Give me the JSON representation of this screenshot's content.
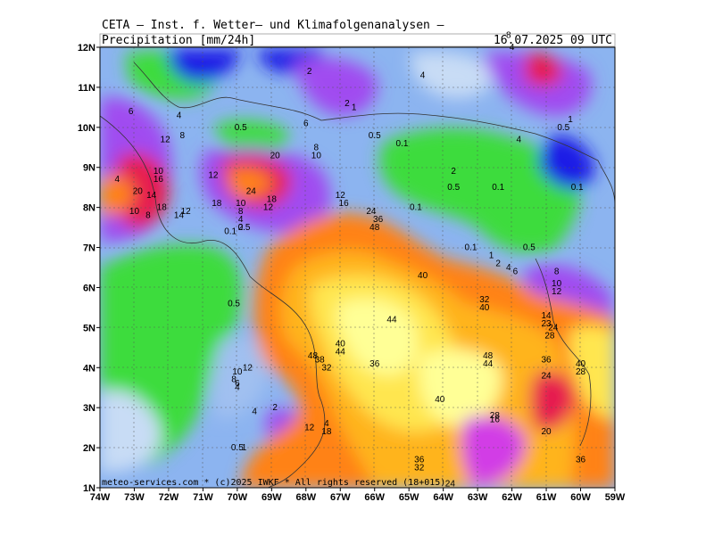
{
  "header": {
    "source": "CETA — Inst. f. Wetter— und Klimafolgenanalysen —",
    "parameter": "Precipitation [mm/24h]",
    "valid_time": "16.07.2025  09 UTC"
  },
  "footer": "meteo-services.com * (c)2025 IWKF * All rights reserved (18+015)",
  "axes": {
    "longitudes": [
      "74W",
      "73W",
      "72W",
      "71W",
      "70W",
      "69W",
      "68W",
      "67W",
      "66W",
      "65W",
      "64W",
      "63W",
      "62W",
      "61W",
      "60W",
      "59W"
    ],
    "latitudes": [
      "1N",
      "2N",
      "3N",
      "4N",
      "5N",
      "6N",
      "7N",
      "8N",
      "9N",
      "10N",
      "11N",
      "12N"
    ]
  },
  "legend_colors": {
    "0.1": "#c8dcf5",
    "0.5": "#a0c0f0",
    "1": "#3cdc3c",
    "2": "#8cb4f0",
    "4": "#6c8cf0",
    "8": "#a04cf0",
    "12": "#d23ce6",
    "16": "#e61e50",
    "20": "#ff5014",
    "24": "#ff8214",
    "32": "#ffb41e",
    "40": "#ffe650",
    "48": "#ffff96",
    "dry": "#1e1ee6"
  },
  "contour_labels": [
    {
      "lon": -73.1,
      "lat": 10.4,
      "text": "6"
    },
    {
      "lon": -71.7,
      "lat": 10.3,
      "text": "4"
    },
    {
      "lon": -72.1,
      "lat": 9.7,
      "text": "12"
    },
    {
      "lon": -71.6,
      "lat": 9.8,
      "text": "8"
    },
    {
      "lon": -72.3,
      "lat": 8.9,
      "text": "10"
    },
    {
      "lon": -72.3,
      "lat": 8.7,
      "text": "16"
    },
    {
      "lon": -73.5,
      "lat": 8.7,
      "text": "4"
    },
    {
      "lon": -72.9,
      "lat": 8.4,
      "text": "20"
    },
    {
      "lon": -72.5,
      "lat": 8.3,
      "text": "14"
    },
    {
      "lon": -72.2,
      "lat": 8.0,
      "text": "18"
    },
    {
      "lon": -73.0,
      "lat": 7.9,
      "text": "10"
    },
    {
      "lon": -72.6,
      "lat": 7.8,
      "text": "8"
    },
    {
      "lon": -71.5,
      "lat": 7.9,
      "text": "12"
    },
    {
      "lon": -71.7,
      "lat": 7.8,
      "text": "14"
    },
    {
      "lon": -70.7,
      "lat": 8.8,
      "text": "12"
    },
    {
      "lon": -70.6,
      "lat": 8.1,
      "text": "18"
    },
    {
      "lon": -69.9,
      "lat": 10.0,
      "text": "0.5"
    },
    {
      "lon": -68.9,
      "lat": 9.3,
      "text": "20"
    },
    {
      "lon": -69.6,
      "lat": 8.4,
      "text": "24"
    },
    {
      "lon": -69.0,
      "lat": 8.2,
      "text": "18"
    },
    {
      "lon": -69.1,
      "lat": 8.0,
      "text": "12"
    },
    {
      "lon": -69.9,
      "lat": 8.1,
      "text": "10"
    },
    {
      "lon": -69.9,
      "lat": 7.9,
      "text": "8"
    },
    {
      "lon": -69.9,
      "lat": 7.7,
      "text": "4"
    },
    {
      "lon": -69.9,
      "lat": 7.5,
      "text": "2"
    },
    {
      "lon": -70.2,
      "lat": 7.4,
      "text": "0.1"
    },
    {
      "lon": -69.8,
      "lat": 7.5,
      "text": "0.5"
    },
    {
      "lon": -67.9,
      "lat": 11.4,
      "text": "2"
    },
    {
      "lon": -68.0,
      "lat": 10.1,
      "text": "6"
    },
    {
      "lon": -67.7,
      "lat": 9.5,
      "text": "8"
    },
    {
      "lon": -67.7,
      "lat": 9.3,
      "text": "10"
    },
    {
      "lon": -66.8,
      "lat": 10.6,
      "text": "2"
    },
    {
      "lon": -66.6,
      "lat": 10.5,
      "text": "1"
    },
    {
      "lon": -66.0,
      "lat": 9.8,
      "text": "0.5"
    },
    {
      "lon": -65.2,
      "lat": 9.6,
      "text": "0.1"
    },
    {
      "lon": -64.8,
      "lat": 8.0,
      "text": "0.1"
    },
    {
      "lon": -64.6,
      "lat": 11.3,
      "text": "4"
    },
    {
      "lon": -63.7,
      "lat": 8.9,
      "text": "2"
    },
    {
      "lon": -63.7,
      "lat": 8.5,
      "text": "0.5"
    },
    {
      "lon": -62.4,
      "lat": 8.5,
      "text": "0.1"
    },
    {
      "lon": -61.8,
      "lat": 9.7,
      "text": "4"
    },
    {
      "lon": -60.5,
      "lat": 10.0,
      "text": "0.5"
    },
    {
      "lon": -60.3,
      "lat": 10.2,
      "text": "1"
    },
    {
      "lon": -60.1,
      "lat": 8.5,
      "text": "0.1"
    },
    {
      "lon": -62.1,
      "lat": 12.3,
      "text": "8"
    },
    {
      "lon": -62.0,
      "lat": 12.0,
      "text": "4"
    },
    {
      "lon": -63.2,
      "lat": 7.0,
      "text": "0.1"
    },
    {
      "lon": -62.6,
      "lat": 6.8,
      "text": "1"
    },
    {
      "lon": -62.4,
      "lat": 6.6,
      "text": "2"
    },
    {
      "lon": -62.1,
      "lat": 6.5,
      "text": "4"
    },
    {
      "lon": -61.9,
      "lat": 6.4,
      "text": "6"
    },
    {
      "lon": -61.5,
      "lat": 7.0,
      "text": "0.5"
    },
    {
      "lon": -60.7,
      "lat": 6.4,
      "text": "8"
    },
    {
      "lon": -60.7,
      "lat": 6.1,
      "text": "10"
    },
    {
      "lon": -60.7,
      "lat": 5.9,
      "text": "12"
    },
    {
      "lon": -61.0,
      "lat": 5.3,
      "text": "14"
    },
    {
      "lon": -61.0,
      "lat": 5.1,
      "text": "23"
    },
    {
      "lon": -60.8,
      "lat": 5.0,
      "text": "24"
    },
    {
      "lon": -60.9,
      "lat": 4.8,
      "text": "28"
    },
    {
      "lon": -62.8,
      "lat": 5.7,
      "text": "32"
    },
    {
      "lon": -62.8,
      "lat": 5.5,
      "text": "40"
    },
    {
      "lon": -67.0,
      "lat": 8.3,
      "text": "12"
    },
    {
      "lon": -66.9,
      "lat": 8.1,
      "text": "16"
    },
    {
      "lon": -66.1,
      "lat": 7.9,
      "text": "24"
    },
    {
      "lon": -65.9,
      "lat": 7.7,
      "text": "36"
    },
    {
      "lon": -66.0,
      "lat": 7.5,
      "text": "48"
    },
    {
      "lon": -64.6,
      "lat": 6.3,
      "text": "40"
    },
    {
      "lon": -65.5,
      "lat": 5.2,
      "text": "44"
    },
    {
      "lon": -67.0,
      "lat": 4.6,
      "text": "40"
    },
    {
      "lon": -67.0,
      "lat": 4.4,
      "text": "44"
    },
    {
      "lon": -67.8,
      "lat": 4.3,
      "text": "48"
    },
    {
      "lon": -67.6,
      "lat": 4.2,
      "text": "38"
    },
    {
      "lon": -67.4,
      "lat": 4.0,
      "text": "32"
    },
    {
      "lon": -66.0,
      "lat": 4.1,
      "text": "36"
    },
    {
      "lon": -62.7,
      "lat": 4.3,
      "text": "48"
    },
    {
      "lon": -62.7,
      "lat": 4.1,
      "text": "44"
    },
    {
      "lon": -61.0,
      "lat": 4.2,
      "text": "36"
    },
    {
      "lon": -61.0,
      "lat": 3.8,
      "text": "24"
    },
    {
      "lon": -60.0,
      "lat": 4.1,
      "text": "40"
    },
    {
      "lon": -60.0,
      "lat": 3.9,
      "text": "28"
    },
    {
      "lon": -69.7,
      "lat": 4.0,
      "text": "12"
    },
    {
      "lon": -70.0,
      "lat": 3.9,
      "text": "10"
    },
    {
      "lon": -70.1,
      "lat": 3.7,
      "text": "8"
    },
    {
      "lon": -70.0,
      "lat": 3.6,
      "text": "6"
    },
    {
      "lon": -70.0,
      "lat": 3.5,
      "text": "4"
    },
    {
      "lon": -70.1,
      "lat": 5.6,
      "text": "0.5"
    },
    {
      "lon": -69.5,
      "lat": 2.9,
      "text": "4"
    },
    {
      "lon": -68.9,
      "lat": 3.0,
      "text": "2"
    },
    {
      "lon": -67.9,
      "lat": 2.5,
      "text": "12"
    },
    {
      "lon": -67.4,
      "lat": 2.4,
      "text": "18"
    },
    {
      "lon": -67.4,
      "lat": 2.6,
      "text": "4"
    },
    {
      "lon": -70.0,
      "lat": 2.0,
      "text": "0.5"
    },
    {
      "lon": -69.8,
      "lat": 2.0,
      "text": "1"
    },
    {
      "lon": -64.1,
      "lat": 3.2,
      "text": "40"
    },
    {
      "lon": -62.5,
      "lat": 2.8,
      "text": "28"
    },
    {
      "lon": -62.5,
      "lat": 2.7,
      "text": "16"
    },
    {
      "lon": -61.0,
      "lat": 2.4,
      "text": "20"
    },
    {
      "lon": -60.0,
      "lat": 1.7,
      "text": "36"
    },
    {
      "lon": -64.7,
      "lat": 1.7,
      "text": "36"
    },
    {
      "lon": -64.7,
      "lat": 1.5,
      "text": "32"
    },
    {
      "lon": -63.8,
      "lat": 1.1,
      "text": "24"
    }
  ]
}
